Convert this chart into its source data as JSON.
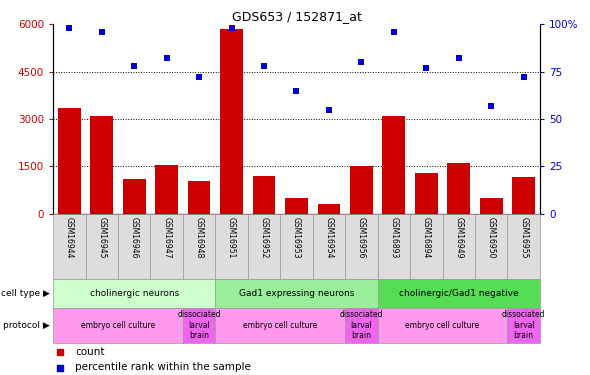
{
  "title": "GDS653 / 152871_at",
  "samples": [
    "GSM16944",
    "GSM16945",
    "GSM16946",
    "GSM16947",
    "GSM16948",
    "GSM16951",
    "GSM16952",
    "GSM16953",
    "GSM16954",
    "GSM16956",
    "GSM16893",
    "GSM16894",
    "GSM16949",
    "GSM16950",
    "GSM16955"
  ],
  "counts": [
    3350,
    3100,
    1100,
    1550,
    1050,
    5850,
    1200,
    500,
    300,
    1500,
    3100,
    1300,
    1600,
    500,
    1150
  ],
  "percentiles": [
    98,
    96,
    78,
    82,
    72,
    98,
    78,
    65,
    55,
    80,
    96,
    77,
    82,
    57,
    72
  ],
  "bar_color": "#cc0000",
  "dot_color": "#0000cc",
  "ylim_left": [
    0,
    6000
  ],
  "ylim_right": [
    0,
    100
  ],
  "yticks_left": [
    0,
    1500,
    3000,
    4500,
    6000
  ],
  "yticks_right": [
    0,
    25,
    50,
    75,
    100
  ],
  "ytick_labels_right": [
    "0",
    "25",
    "50",
    "75",
    "100%"
  ],
  "cell_type_groups": [
    {
      "label": "cholinergic neurons",
      "start": 0,
      "end": 5,
      "color": "#ccffcc"
    },
    {
      "label": "Gad1 expressing neurons",
      "start": 5,
      "end": 10,
      "color": "#99ee99"
    },
    {
      "label": "cholinergic/Gad1 negative",
      "start": 10,
      "end": 15,
      "color": "#55dd55"
    }
  ],
  "protocol_groups": [
    {
      "label": "embryo cell culture",
      "start": 0,
      "end": 4,
      "color": "#ff99ee"
    },
    {
      "label": "dissociated\nlarval\nbrain",
      "start": 4,
      "end": 5,
      "color": "#ee66ee"
    },
    {
      "label": "embryo cell culture",
      "start": 5,
      "end": 9,
      "color": "#ff99ee"
    },
    {
      "label": "dissociated\nlarval\nbrain",
      "start": 9,
      "end": 10,
      "color": "#ee66ee"
    },
    {
      "label": "embryo cell culture",
      "start": 10,
      "end": 14,
      "color": "#ff99ee"
    },
    {
      "label": "dissociated\nlarval\nbrain",
      "start": 14,
      "end": 15,
      "color": "#ee66ee"
    }
  ],
  "legend_count_label": "count",
  "legend_pct_label": "percentile rank within the sample",
  "cell_type_label": "cell type",
  "protocol_label": "protocol",
  "bar_color_left_tick": "#cc0000",
  "dot_color_right_tick": "#0000cc",
  "sample_bg_color": "#dddddd",
  "sample_border_color": "#999999"
}
